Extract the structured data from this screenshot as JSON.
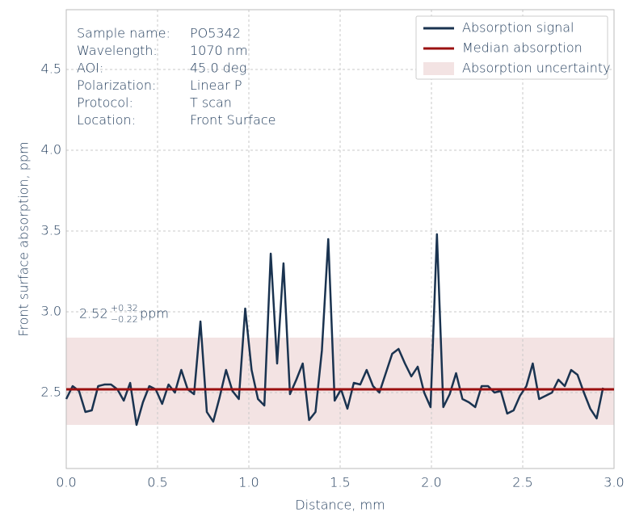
{
  "chart_data": {
    "type": "line",
    "xlabel": "Distance, mm",
    "ylabel": "Front surface absorption, ppm",
    "xlim": [
      0,
      3
    ],
    "ylim": [
      2.03,
      4.87
    ],
    "xticks": [
      {
        "value": 0,
        "label": "0.0"
      },
      0.5,
      {
        "value": 1,
        "label": "1.0"
      },
      1.5,
      {
        "value": 2,
        "label": "2.0"
      },
      2.5,
      {
        "value": 3,
        "label": "3.0"
      }
    ],
    "yticks": [
      2.5,
      {
        "value": 3,
        "label": "3.0"
      },
      3.5,
      {
        "value": 4,
        "label": "4.0"
      },
      4.5
    ],
    "grid": true,
    "legend": "upper right",
    "info": [
      {
        "label": "Sample name:",
        "value": "PO5342"
      },
      {
        "label": "Wavelength:",
        "value": "1070 nm"
      },
      {
        "label": "AOI:",
        "value": "45.0 deg"
      },
      {
        "label": "Polarization:",
        "value": "Linear P"
      },
      {
        "label": "Protocol:",
        "value": "T scan"
      },
      {
        "label": "Location:",
        "value": "Front Surface"
      }
    ],
    "annotation": {
      "base": "2.52",
      "upper": "+0.32",
      "lower": "−0.22",
      "unit": "ppm"
    },
    "x": [
      0.0,
      0.035,
      0.07,
      0.105,
      0.14,
      0.175,
      0.21,
      0.245,
      0.28,
      0.315,
      0.35,
      0.385,
      0.42,
      0.455,
      0.49,
      0.525,
      0.56,
      0.595,
      0.63,
      0.665,
      0.7,
      0.735,
      0.77,
      0.805,
      0.84,
      0.875,
      0.91,
      0.945,
      0.98,
      1.015,
      1.05,
      1.085,
      1.12,
      1.155,
      1.19,
      1.225,
      1.26,
      1.295,
      1.33,
      1.365,
      1.4,
      1.435,
      1.47,
      1.505,
      1.54,
      1.575,
      1.61,
      1.645,
      1.68,
      1.715,
      1.75,
      1.785,
      1.82,
      1.855,
      1.89,
      1.925,
      1.96,
      1.995,
      2.03,
      2.065,
      2.1,
      2.135,
      2.17,
      2.205,
      2.24,
      2.275,
      2.31,
      2.345,
      2.38,
      2.415,
      2.45,
      2.485,
      2.52,
      2.555,
      2.59,
      2.625,
      2.66,
      2.695,
      2.73,
      2.765,
      2.8,
      2.835,
      2.87,
      2.905,
      2.94
    ],
    "series": [
      {
        "name": "Absorption signal",
        "color": "#1a3350",
        "values": [
          2.46,
          2.54,
          2.51,
          2.38,
          2.39,
          2.54,
          2.55,
          2.55,
          2.52,
          2.45,
          2.56,
          2.3,
          2.44,
          2.54,
          2.52,
          2.43,
          2.55,
          2.5,
          2.64,
          2.52,
          2.49,
          2.94,
          2.38,
          2.32,
          2.47,
          2.64,
          2.51,
          2.46,
          3.02,
          2.64,
          2.46,
          2.42,
          3.36,
          2.68,
          3.3,
          2.49,
          2.58,
          2.68,
          2.33,
          2.38,
          2.76,
          3.45,
          2.45,
          2.52,
          2.4,
          2.56,
          2.55,
          2.64,
          2.54,
          2.5,
          2.62,
          2.74,
          2.77,
          2.68,
          2.6,
          2.66,
          2.5,
          2.41,
          3.48,
          2.41,
          2.49,
          2.62,
          2.46,
          2.44,
          2.41,
          2.54,
          2.54,
          2.5,
          2.51,
          2.37,
          2.39,
          2.48,
          2.54,
          2.68,
          2.46,
          2.48,
          2.5,
          2.58,
          2.54,
          2.64,
          2.61,
          2.5,
          2.4,
          2.34,
          2.53
        ]
      },
      {
        "name": "Median absorption",
        "color": "#9b1010",
        "value": 2.52
      },
      {
        "name": "Absorption uncertainty",
        "color": "#f3e3e3",
        "range": [
          2.3,
          2.84
        ]
      }
    ]
  }
}
